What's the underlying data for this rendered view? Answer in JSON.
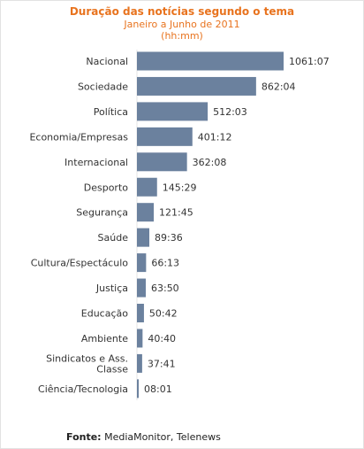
{
  "chart_data": {
    "type": "bar",
    "orientation": "horizontal",
    "title": "Duração das notícias segundo o tema",
    "subtitle": [
      "Janeiro a Junho de 2011",
      "(hh:mm)"
    ],
    "categories": [
      "Nacional",
      "Sociedade",
      "Política",
      "Economia/Empresas",
      "Internacional",
      "Desporto",
      "Segurança",
      "Saúde",
      "Cultura/Espectáculo",
      "Justiça",
      "Educação",
      "Ambiente",
      "Sindicatos e Ass. Classe",
      "Ciência/Tecnologia"
    ],
    "values": [
      1061.12,
      862.07,
      512.05,
      401.2,
      362.13,
      145.48,
      121.75,
      89.6,
      66.22,
      63.83,
      50.7,
      40.67,
      37.68,
      8.02
    ],
    "value_labels": [
      "1061:07",
      "862:04",
      "512:03",
      "401:12",
      "362:08",
      "145:29",
      "121:45",
      "89:36",
      "66:13",
      "63:50",
      "50:42",
      "40:40",
      "37:41",
      "08:01"
    ],
    "unit": "hh:mm",
    "bar_color": "#6b819e",
    "legend": "none",
    "grid": false
  },
  "source": {
    "label": "Fonte:",
    "text": " MediaMonitor, Telenews"
  },
  "colors": {
    "title": "#e8731e",
    "text": "#333333"
  }
}
